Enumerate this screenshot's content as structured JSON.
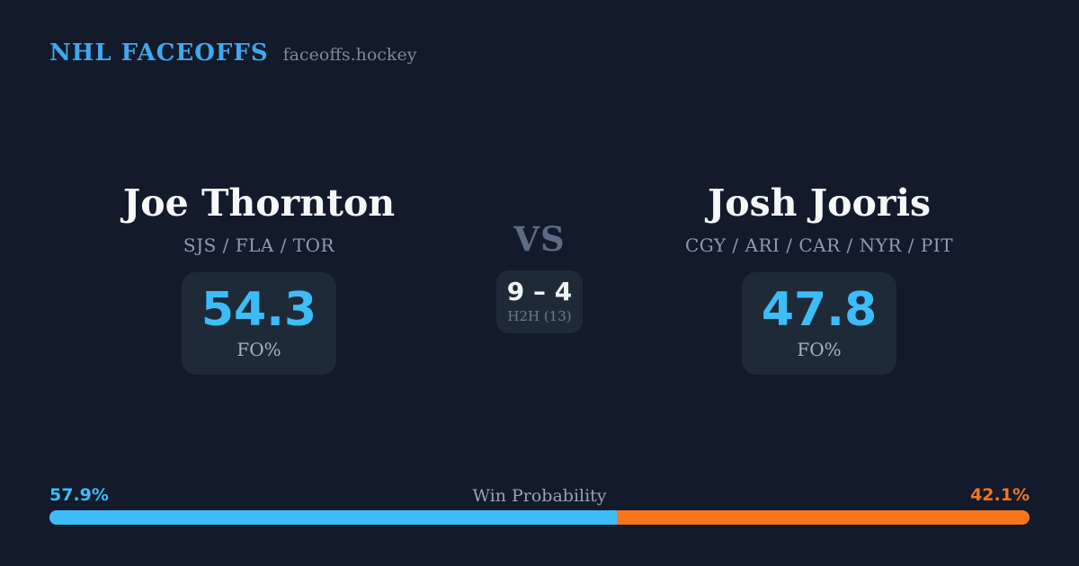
{
  "brand": {
    "title": "NHL FACEOFFS",
    "domain": "faceoffs.hockey",
    "accent_color": "#41a8ec"
  },
  "matchup": {
    "vs_label": "VS",
    "h2h": {
      "score": "9 – 4",
      "label": "H2H (13)"
    },
    "players": [
      {
        "name": "Joe Thornton",
        "teams": "SJS / FLA / TOR",
        "stat_value": "54.3",
        "stat_label": "FO%"
      },
      {
        "name": "Josh Jooris",
        "teams": "CGY / ARI / CAR / NYR / PIT",
        "stat_value": "47.8",
        "stat_label": "FO%"
      }
    ]
  },
  "win_probability": {
    "label": "Win Probability",
    "left_pct_label": "57.9%",
    "right_pct_label": "42.1%",
    "left_value": 57.9,
    "right_value": 42.1,
    "left_color": "#3dbdf8",
    "right_color": "#f7741d"
  },
  "colors": {
    "background": "#121a2b",
    "card_background": "#1f2a39",
    "stat_blue": "#3dbdf8",
    "orange": "#f7741d",
    "name_white": "#f5f7f9",
    "muted_gray": "#8d9cb4"
  }
}
